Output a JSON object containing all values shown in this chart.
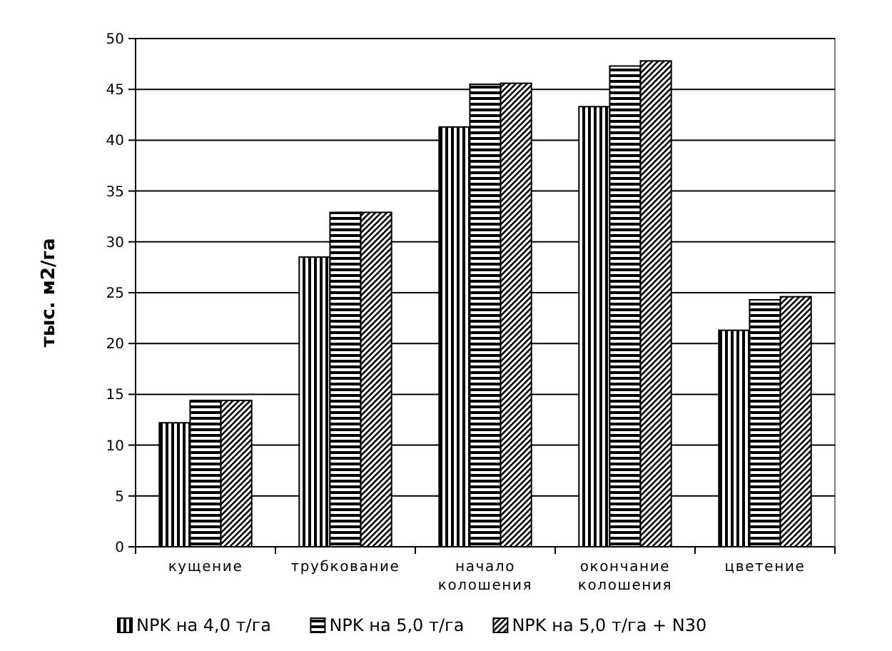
{
  "chart_data": {
    "type": "bar",
    "ylabel": "тыс. м2/га",
    "categories": [
      "кущение",
      "трубкование",
      "начало колошения",
      "окончание колошения",
      "цветение"
    ],
    "series": [
      {
        "name": "NPK  на 4,0 т/га",
        "color": "#000000",
        "values": [
          12.2,
          28.5,
          41.3,
          43.3,
          21.3
        ]
      },
      {
        "name": "NPK на 5,0 т/га",
        "color": "#000000",
        "values": [
          14.4,
          32.9,
          45.5,
          47.3,
          24.3
        ]
      },
      {
        "name": "NPK на 5,0 т/га + N30",
        "color": "#000000",
        "values": [
          14.4,
          32.9,
          45.6,
          47.8,
          24.6
        ]
      }
    ],
    "ylim": [
      0,
      50
    ],
    "yticks": [
      0,
      5,
      10,
      15,
      20,
      25,
      30,
      35,
      40,
      45,
      50
    ],
    "grid": "y",
    "legend": "bottom"
  }
}
